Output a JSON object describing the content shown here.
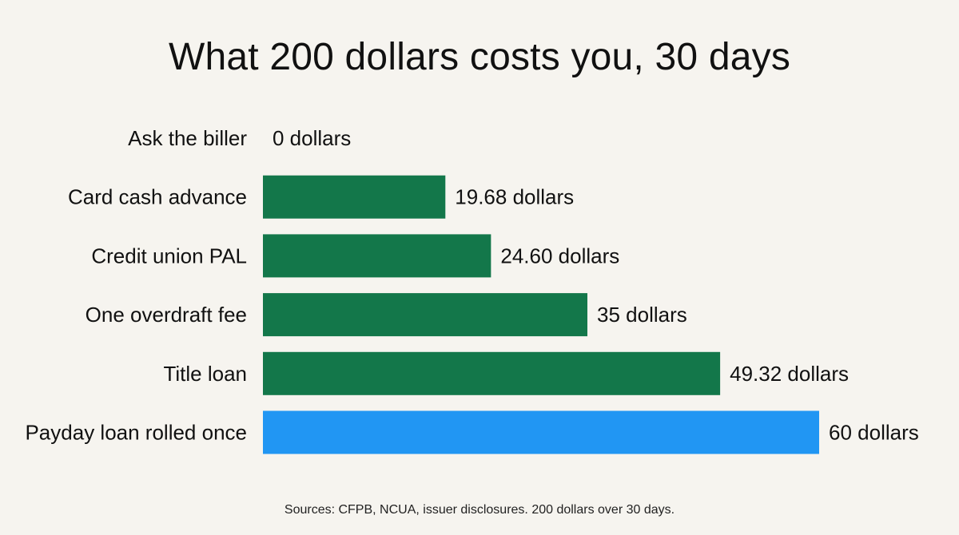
{
  "chart_data": {
    "type": "bar",
    "orientation": "horizontal",
    "title": "What 200 dollars costs you, 30 days",
    "categories": [
      "Ask the biller",
      "Card cash advance",
      "Credit union PAL",
      "One overdraft fee",
      "Title loan",
      "Payday loan rolled once"
    ],
    "values": [
      0,
      19.68,
      24.6,
      35,
      49.32,
      60
    ],
    "data_labels": [
      "0 dollars",
      "19.68 dollars",
      "24.60 dollars",
      "35 dollars",
      "49.32 dollars",
      "60 dollars"
    ],
    "bar_colors": [
      "#13774a",
      "#13774a",
      "#13774a",
      "#13774a",
      "#13774a",
      "#2196f3"
    ],
    "xlim": [
      0,
      60
    ],
    "grid": false,
    "legend": false,
    "xlabel": "",
    "ylabel": ""
  },
  "footer": {
    "source": "Sources: CFPB, NCUA, issuer disclosures. 200 dollars over 30 days."
  },
  "colors": {
    "background": "#f6f4ef",
    "text": "#111111",
    "bar_default": "#13774a",
    "bar_highlight": "#2196f3"
  }
}
